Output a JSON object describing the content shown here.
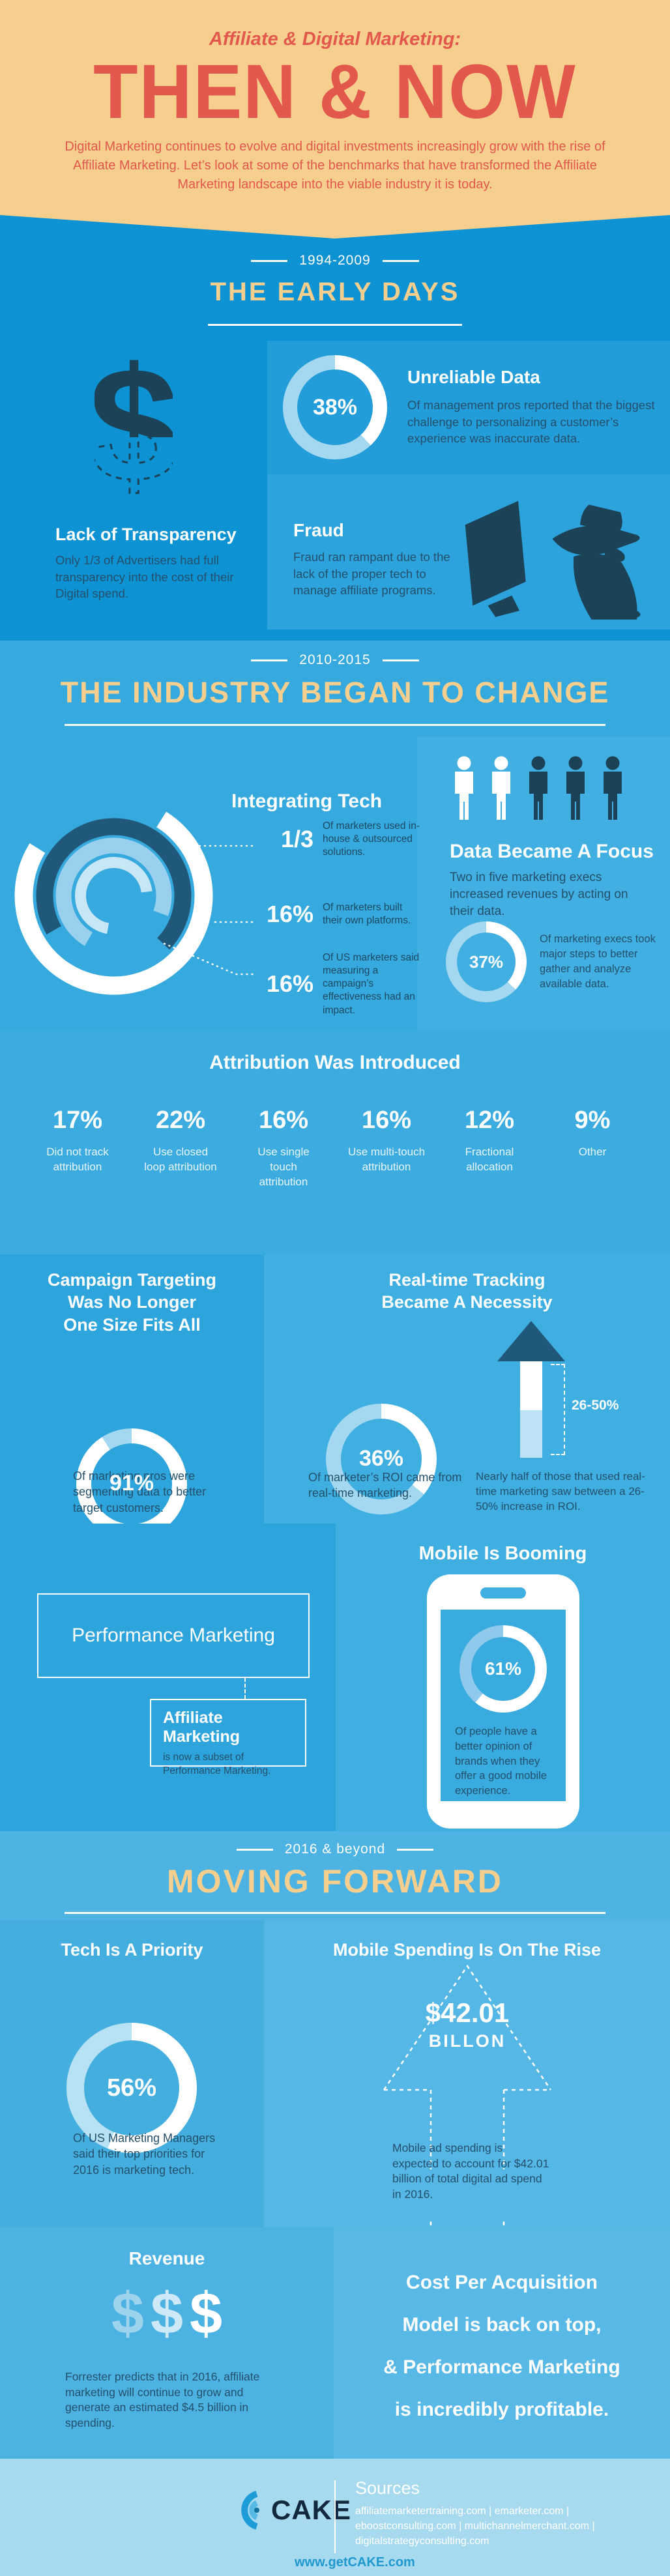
{
  "header": {
    "kicker": "Affiliate & Digital Marketing:",
    "title": "THEN & NOW",
    "intro": "Digital Marketing continues to evolve and digital investments increasingly grow with the rise of Affiliate Marketing. Let’s look at some of the benchmarks that have transformed the Affiliate Marketing landscape into the viable industry it is today."
  },
  "early": {
    "era": "1994-2009",
    "title": "THE EARLY DAYS",
    "transparency": {
      "title": "Lack of Transparency",
      "body": "Only 1/3 of Advertisers had full transparency into the cost of their Digital spend."
    },
    "unreliable": {
      "title": "Unreliable Data",
      "body": "Of management pros reported that the biggest challenge to personalizing a customer’s experience was inaccurate data."
    },
    "fraud": {
      "title": "Fraud",
      "body": "Fraud ran rampant due to the lack of the proper tech to manage affiliate programs."
    }
  },
  "change": {
    "era": "2010-2015",
    "title": "THE INDUSTRY BEGAN TO CHANGE",
    "integrating": {
      "title": "Integrating Tech",
      "stats": [
        {
          "value": "1/3",
          "text": "Of marketers used in-house & outsourced solutions."
        },
        {
          "value": "16%",
          "text": "Of marketers built their own platforms."
        },
        {
          "value": "16%",
          "text": "Of US marketers said measuring a campaign’s effectiveness had an impact."
        }
      ]
    },
    "data_focus": {
      "title": "Data Became A Focus",
      "body": "Two in five marketing execs increased revenues by acting on their data.",
      "donut_caption": "Of marketing execs took major steps to better gather and analyze available data.",
      "persons": [
        "#FFFFFF",
        "#FFFFFF",
        "#1C4257",
        "#1C4257",
        "#1C4257"
      ]
    },
    "attribution": {
      "title": "Attribution Was Introduced",
      "stats": [
        {
          "value": "17%",
          "label": "Did not track attribution"
        },
        {
          "value": "22%",
          "label": "Use closed loop attribution"
        },
        {
          "value": "16%",
          "label": "Use single touch attribution"
        },
        {
          "value": "16%",
          "label": "Use multi-touch attribution"
        },
        {
          "value": "12%",
          "label": "Fractional allocation"
        },
        {
          "value": "9%",
          "label": "Other"
        }
      ]
    },
    "campaign": {
      "title_lines": [
        "Campaign Targeting",
        "Was No Longer",
        "One Size Fits All"
      ],
      "caption": "Of marketing pros were segmenting data to better target customers."
    },
    "realtime": {
      "title_lines": [
        "Real-time Tracking",
        "Became A Necessity"
      ],
      "donut_caption": "Of marketer’s ROI came from real-time marketing.",
      "arrow_label": "26-50%",
      "arrow_caption": "Nearly half of those that used real-time marketing saw between a 26-50% increase in ROI."
    },
    "performance": {
      "box_label": "Performance Marketing",
      "affiliate_title": "Affiliate Marketing",
      "affiliate_body": "is now a subset of Performance Marketing."
    },
    "mobile": {
      "title": "Mobile Is Booming",
      "caption": "Of people have a better opinion of brands when they offer a good mobile experience."
    }
  },
  "forward": {
    "era": "2016 & beyond",
    "title": "MOVING FORWARD",
    "tech": {
      "title": "Tech Is A Priority",
      "caption": "Of US Marketing Managers said their top priorities for 2016 is marketing tech."
    },
    "spend": {
      "title": "Mobile Spending Is On The Rise",
      "amount": "$42.01",
      "unit": "BILLON",
      "caption": "Mobile ad spending is expected to account for $42.01 billion of total digital ad spend in 2016."
    },
    "revenue": {
      "title": "Revenue",
      "dollars": "$$$",
      "dollar_colors": [
        "#9ED3EE",
        "#CDE9F7",
        "#FFFFFF"
      ],
      "caption": "Forrester predicts that in 2016, affiliate marketing will continue to grow and generate an estimated $4.5 billion in spending."
    },
    "cpa": {
      "lines": [
        "Cost Per Acquisition",
        "Model is back on top,",
        "& Performance Marketing",
        "is incredibly profitable."
      ]
    }
  },
  "donuts": {
    "unreliable": {
      "label": "38%",
      "value": 38,
      "fill": "#FFFFFF",
      "track": "#A3D8F0"
    },
    "data_focus": {
      "label": "37%",
      "value": 37,
      "fill": "#FFFFFF",
      "track": "#A3D8F0"
    },
    "campaign": {
      "label": "91%",
      "value": 91,
      "fill": "#FFFFFF",
      "track": "#A3D8F0"
    },
    "realtime": {
      "label": "36%",
      "value": 36,
      "fill": "#FFFFFF",
      "track": "#A3D8F0"
    },
    "mobile": {
      "label": "61%",
      "value": 61,
      "fill": "#FFFFFF",
      "track": "#8FC9EC"
    },
    "tech": {
      "label": "56%",
      "value": 56,
      "fill": "#FFFFFF",
      "track": "#B7E2F4"
    }
  },
  "footer": {
    "brand": "CAKE",
    "sources_title": "Sources",
    "sources_lines": [
      "affiliatemarketertraining.com | emarketer.com |",
      "eboostconsulting.com | multichannelmerchant.com |",
      "digitalstrategyconsulting.com"
    ],
    "website": "www.getCAKE.com"
  },
  "chart_data": [
    {
      "type": "pie",
      "title": "Unreliable Data",
      "values": [
        38
      ],
      "labels": [
        "38%"
      ]
    },
    {
      "type": "pie",
      "title": "Data Became A Focus",
      "values": [
        37
      ],
      "labels": [
        "37%"
      ]
    },
    {
      "type": "bar",
      "title": "Attribution Was Introduced",
      "categories": [
        "Did not track attribution",
        "Use closed loop attribution",
        "Use single touch attribution",
        "Use multi-touch attribution",
        "Fractional allocation",
        "Other"
      ],
      "values": [
        17,
        22,
        16,
        16,
        12,
        9
      ]
    },
    {
      "type": "pie",
      "title": "Campaign Targeting",
      "values": [
        91
      ],
      "labels": [
        "91%"
      ]
    },
    {
      "type": "pie",
      "title": "Real-time Tracking",
      "values": [
        36
      ],
      "labels": [
        "36%"
      ]
    },
    {
      "type": "pie",
      "title": "Mobile Is Booming",
      "values": [
        61
      ],
      "labels": [
        "61%"
      ]
    },
    {
      "type": "pie",
      "title": "Tech Is A Priority",
      "values": [
        56
      ],
      "labels": [
        "56%"
      ]
    }
  ]
}
